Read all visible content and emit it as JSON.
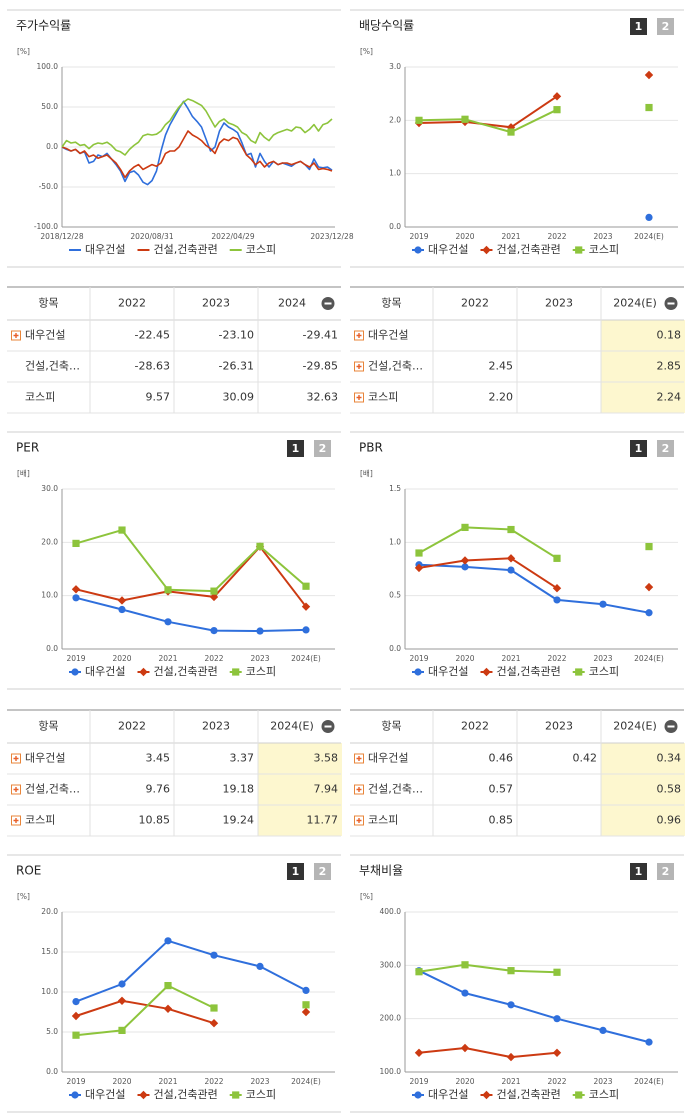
{
  "chart_data": [
    {
      "type": "line",
      "title": "주가수익률",
      "y_label": "[%]",
      "grid": true,
      "legend": "bottom",
      "categories": [
        "2018/12/28",
        null,
        null,
        null,
        null,
        null,
        null,
        null,
        null,
        null,
        null,
        null,
        null,
        null,
        null,
        null,
        null,
        null,
        null,
        null,
        "2020/08/31",
        null,
        null,
        null,
        null,
        null,
        null,
        null,
        null,
        null,
        null,
        null,
        null,
        null,
        null,
        null,
        null,
        null,
        "2022/04/29",
        null,
        null,
        null,
        null,
        null,
        null,
        null,
        null,
        null,
        null,
        null,
        null,
        null,
        null,
        null,
        null,
        null,
        null,
        null,
        null,
        null,
        "2023/12/28"
      ],
      "ylim": [
        -100,
        100
      ],
      "yticks": [
        {
          "value": 100,
          "label": "100.0"
        },
        {
          "value": 50,
          "label": "50.0"
        },
        {
          "value": 0,
          "label": "0.0"
        },
        {
          "value": -50,
          "label": "-50.0"
        },
        {
          "value": -100,
          "label": "-100.0"
        }
      ],
      "series": [
        {
          "name": "대우건설",
          "color": "#2f6fdc",
          "values": [
            0,
            -3,
            -5,
            -3,
            -8,
            -6,
            -20,
            -18,
            -10,
            -12,
            -8,
            -15,
            -22,
            -30,
            -43,
            -32,
            -30,
            -35,
            -44,
            -47,
            -42,
            -30,
            -5,
            15,
            28,
            38,
            48,
            57,
            48,
            38,
            32,
            25,
            10,
            -5,
            0,
            20,
            30,
            25,
            22,
            18,
            5,
            -10,
            -8,
            -25,
            -8,
            -18,
            -25,
            -18,
            -22,
            -20,
            -22,
            -24,
            -20,
            -18,
            -22,
            -28,
            -15,
            -25,
            -26,
            -25,
            -29
          ]
        },
        {
          "name": "건설,건축관련",
          "color": "#cc3a12",
          "values": [
            0,
            -2,
            -5,
            -3,
            -8,
            -5,
            -12,
            -10,
            -14,
            -12,
            -10,
            -15,
            -20,
            -28,
            -38,
            -30,
            -25,
            -22,
            -28,
            -25,
            -22,
            -24,
            -20,
            -8,
            -5,
            -5,
            0,
            10,
            20,
            15,
            12,
            8,
            2,
            -2,
            -8,
            5,
            10,
            8,
            12,
            10,
            0,
            -10,
            -15,
            -22,
            -18,
            -25,
            -20,
            -18,
            -22,
            -20,
            -20,
            -22,
            -20,
            -18,
            -22,
            -25,
            -20,
            -28,
            -27,
            -28,
            -30
          ]
        },
        {
          "name": "코스피",
          "color": "#8dc43c",
          "values": [
            0,
            8,
            5,
            6,
            2,
            3,
            -2,
            3,
            5,
            4,
            6,
            2,
            -4,
            -6,
            -10,
            -3,
            2,
            6,
            14,
            16,
            15,
            16,
            20,
            28,
            33,
            42,
            50,
            56,
            60,
            58,
            55,
            52,
            45,
            35,
            25,
            32,
            35,
            30,
            28,
            25,
            18,
            15,
            8,
            5,
            18,
            12,
            8,
            15,
            18,
            20,
            22,
            20,
            25,
            24,
            18,
            22,
            28,
            20,
            28,
            30,
            35
          ]
        }
      ]
    },
    {
      "type": "line",
      "title": "배당수익률",
      "buttons": [
        "1",
        "2"
      ],
      "y_label": "[%]",
      "grid": true,
      "legend": "bottom",
      "categories": [
        "2019",
        "2020",
        "2021",
        "2022",
        "2023",
        "2024(E)"
      ],
      "ylim": [
        0,
        3
      ],
      "yticks": [
        {
          "value": 0,
          "label": "0.0"
        },
        {
          "value": 1,
          "label": "1.0"
        },
        {
          "value": 2,
          "label": "2.0"
        },
        {
          "value": 3,
          "label": "3.0"
        }
      ],
      "series": [
        {
          "name": "대우건설",
          "color": "#2f6fdc",
          "marker": "circle",
          "values": [
            null,
            null,
            null,
            null,
            null,
            0.18
          ]
        },
        {
          "name": "건설,건축관련",
          "color": "#cc3a12",
          "marker": "diamond",
          "values": [
            1.95,
            1.97,
            1.87,
            2.45,
            null,
            2.85
          ]
        },
        {
          "name": "코스피",
          "color": "#8dc43c",
          "marker": "square",
          "values": [
            2.0,
            2.02,
            1.78,
            2.2,
            null,
            2.24
          ]
        }
      ]
    },
    {
      "type": "line",
      "title": "PER",
      "buttons": [
        "1",
        "2"
      ],
      "y_label": "[배]",
      "grid": true,
      "legend": "bottom",
      "categories": [
        "2019",
        "2020",
        "2021",
        "2022",
        "2023",
        "2024(E)"
      ],
      "ylim": [
        0,
        30
      ],
      "yticks": [
        {
          "value": 0,
          "label": "0.0"
        },
        {
          "value": 10,
          "label": "10.0"
        },
        {
          "value": 20,
          "label": "20.0"
        },
        {
          "value": 30,
          "label": "30.0"
        }
      ],
      "series": [
        {
          "name": "대우건설",
          "color": "#2f6fdc",
          "marker": "circle",
          "values": [
            9.6,
            7.4,
            5.1,
            3.45,
            3.37,
            3.58
          ]
        },
        {
          "name": "건설,건축관련",
          "color": "#cc3a12",
          "marker": "diamond",
          "values": [
            11.2,
            9.1,
            10.8,
            9.76,
            19.18,
            7.94
          ]
        },
        {
          "name": "코스피",
          "color": "#8dc43c",
          "marker": "square",
          "values": [
            19.8,
            22.3,
            11.1,
            10.85,
            19.24,
            11.77
          ]
        }
      ]
    },
    {
      "type": "line",
      "title": "PBR",
      "buttons": [
        "1",
        "2"
      ],
      "y_label": "[배]",
      "grid": true,
      "legend": "bottom",
      "categories": [
        "2019",
        "2020",
        "2021",
        "2022",
        "2023",
        "2024(E)"
      ],
      "ylim": [
        0,
        1.5
      ],
      "yticks": [
        {
          "value": 0,
          "label": "0.0"
        },
        {
          "value": 0.5,
          "label": "0.5"
        },
        {
          "value": 1,
          "label": "1.0"
        },
        {
          "value": 1.5,
          "label": "1.5"
        }
      ],
      "series": [
        {
          "name": "대우건설",
          "color": "#2f6fdc",
          "marker": "circle",
          "values": [
            0.79,
            0.77,
            0.74,
            0.46,
            0.42,
            0.34
          ]
        },
        {
          "name": "건설,건축관련",
          "color": "#cc3a12",
          "marker": "diamond",
          "values": [
            0.76,
            0.83,
            0.85,
            0.57,
            null,
            0.58
          ]
        },
        {
          "name": "코스피",
          "color": "#8dc43c",
          "marker": "square",
          "values": [
            0.9,
            1.14,
            1.12,
            0.85,
            null,
            0.96
          ]
        }
      ]
    },
    {
      "type": "line",
      "title": "ROE",
      "buttons": [
        "1",
        "2"
      ],
      "y_label": "[%]",
      "grid": true,
      "legend": "bottom",
      "categories": [
        "2019",
        "2020",
        "2021",
        "2022",
        "2023",
        "2024(E)"
      ],
      "ylim": [
        0,
        20
      ],
      "yticks": [
        {
          "value": 0,
          "label": "0.0"
        },
        {
          "value": 5,
          "label": "5.0"
        },
        {
          "value": 10,
          "label": "10.0"
        },
        {
          "value": 15,
          "label": "15.0"
        },
        {
          "value": 20,
          "label": "20.0"
        }
      ],
      "series": [
        {
          "name": "대우건설",
          "color": "#2f6fdc",
          "marker": "circle",
          "values": [
            8.8,
            11.0,
            16.4,
            14.6,
            13.2,
            10.2
          ]
        },
        {
          "name": "건설,건축관련",
          "color": "#cc3a12",
          "marker": "diamond",
          "values": [
            7.0,
            8.9,
            7.9,
            6.1,
            null,
            7.5
          ]
        },
        {
          "name": "코스피",
          "color": "#8dc43c",
          "marker": "square",
          "values": [
            4.6,
            5.2,
            10.8,
            8.0,
            null,
            8.4
          ]
        }
      ]
    },
    {
      "type": "line",
      "title": "부채비율",
      "buttons": [
        "1",
        "2"
      ],
      "y_label": "[%]",
      "grid": true,
      "legend": "bottom",
      "categories": [
        "2019",
        "2020",
        "2021",
        "2022",
        "2023",
        "2024(E)"
      ],
      "ylim": [
        100,
        400
      ],
      "yticks": [
        {
          "value": 100,
          "label": "100.0"
        },
        {
          "value": 200,
          "label": "200.0"
        },
        {
          "value": 300,
          "label": "300.0"
        },
        {
          "value": 400,
          "label": "400.0"
        }
      ],
      "series": [
        {
          "name": "대우건설",
          "color": "#2f6fdc",
          "marker": "circle",
          "values": [
            290,
            248,
            226,
            200,
            178,
            156
          ]
        },
        {
          "name": "건설,건축관련",
          "color": "#cc3a12",
          "marker": "diamond",
          "values": [
            136,
            145,
            128,
            136,
            null,
            null
          ]
        },
        {
          "name": "코스피",
          "color": "#8dc43c",
          "marker": "square",
          "values": [
            288,
            301,
            290,
            287,
            null,
            null
          ]
        }
      ]
    }
  ],
  "tables": [
    {
      "headers": [
        "항목",
        "2022",
        "2023",
        "2024"
      ],
      "rows": [
        {
          "name": "대우건설",
          "expandable": true,
          "cells": [
            "-22.45",
            "-23.10",
            "-29.41"
          ]
        },
        {
          "name": "건설,건축…",
          "expandable": false,
          "cells": [
            "-28.63",
            "-26.31",
            "-29.85"
          ]
        },
        {
          "name": "코스피",
          "expandable": false,
          "cells": [
            "9.57",
            "30.09",
            "32.63"
          ]
        }
      ]
    },
    {
      "headers": [
        "항목",
        "2022",
        "2023",
        "2024(E)"
      ],
      "highlight_column": 3,
      "rows": [
        {
          "name": "대우건설",
          "expandable": true,
          "cells": [
            null,
            null,
            "0.18"
          ]
        },
        {
          "name": "건설,건축…",
          "expandable": true,
          "cells": [
            "2.45",
            null,
            "2.85"
          ]
        },
        {
          "name": "코스피",
          "expandable": true,
          "cells": [
            "2.20",
            null,
            "2.24"
          ]
        }
      ]
    },
    {
      "headers": [
        "항목",
        "2022",
        "2023",
        "2024(E)"
      ],
      "highlight_column": 3,
      "rows": [
        {
          "name": "대우건설",
          "expandable": true,
          "cells": [
            "3.45",
            "3.37",
            "3.58"
          ]
        },
        {
          "name": "건설,건축…",
          "expandable": true,
          "cells": [
            "9.76",
            "19.18",
            "7.94"
          ]
        },
        {
          "name": "코스피",
          "expandable": true,
          "cells": [
            "10.85",
            "19.24",
            "11.77"
          ]
        }
      ]
    },
    {
      "headers": [
        "항목",
        "2022",
        "2023",
        "2024(E)"
      ],
      "highlight_column": 3,
      "rows": [
        {
          "name": "대우건설",
          "expandable": true,
          "cells": [
            "0.46",
            "0.42",
            "0.34"
          ]
        },
        {
          "name": "건설,건축…",
          "expandable": true,
          "cells": [
            "0.57",
            null,
            "0.58"
          ]
        },
        {
          "name": "코스피",
          "expandable": true,
          "cells": [
            "0.85",
            null,
            "0.96"
          ]
        }
      ]
    }
  ]
}
